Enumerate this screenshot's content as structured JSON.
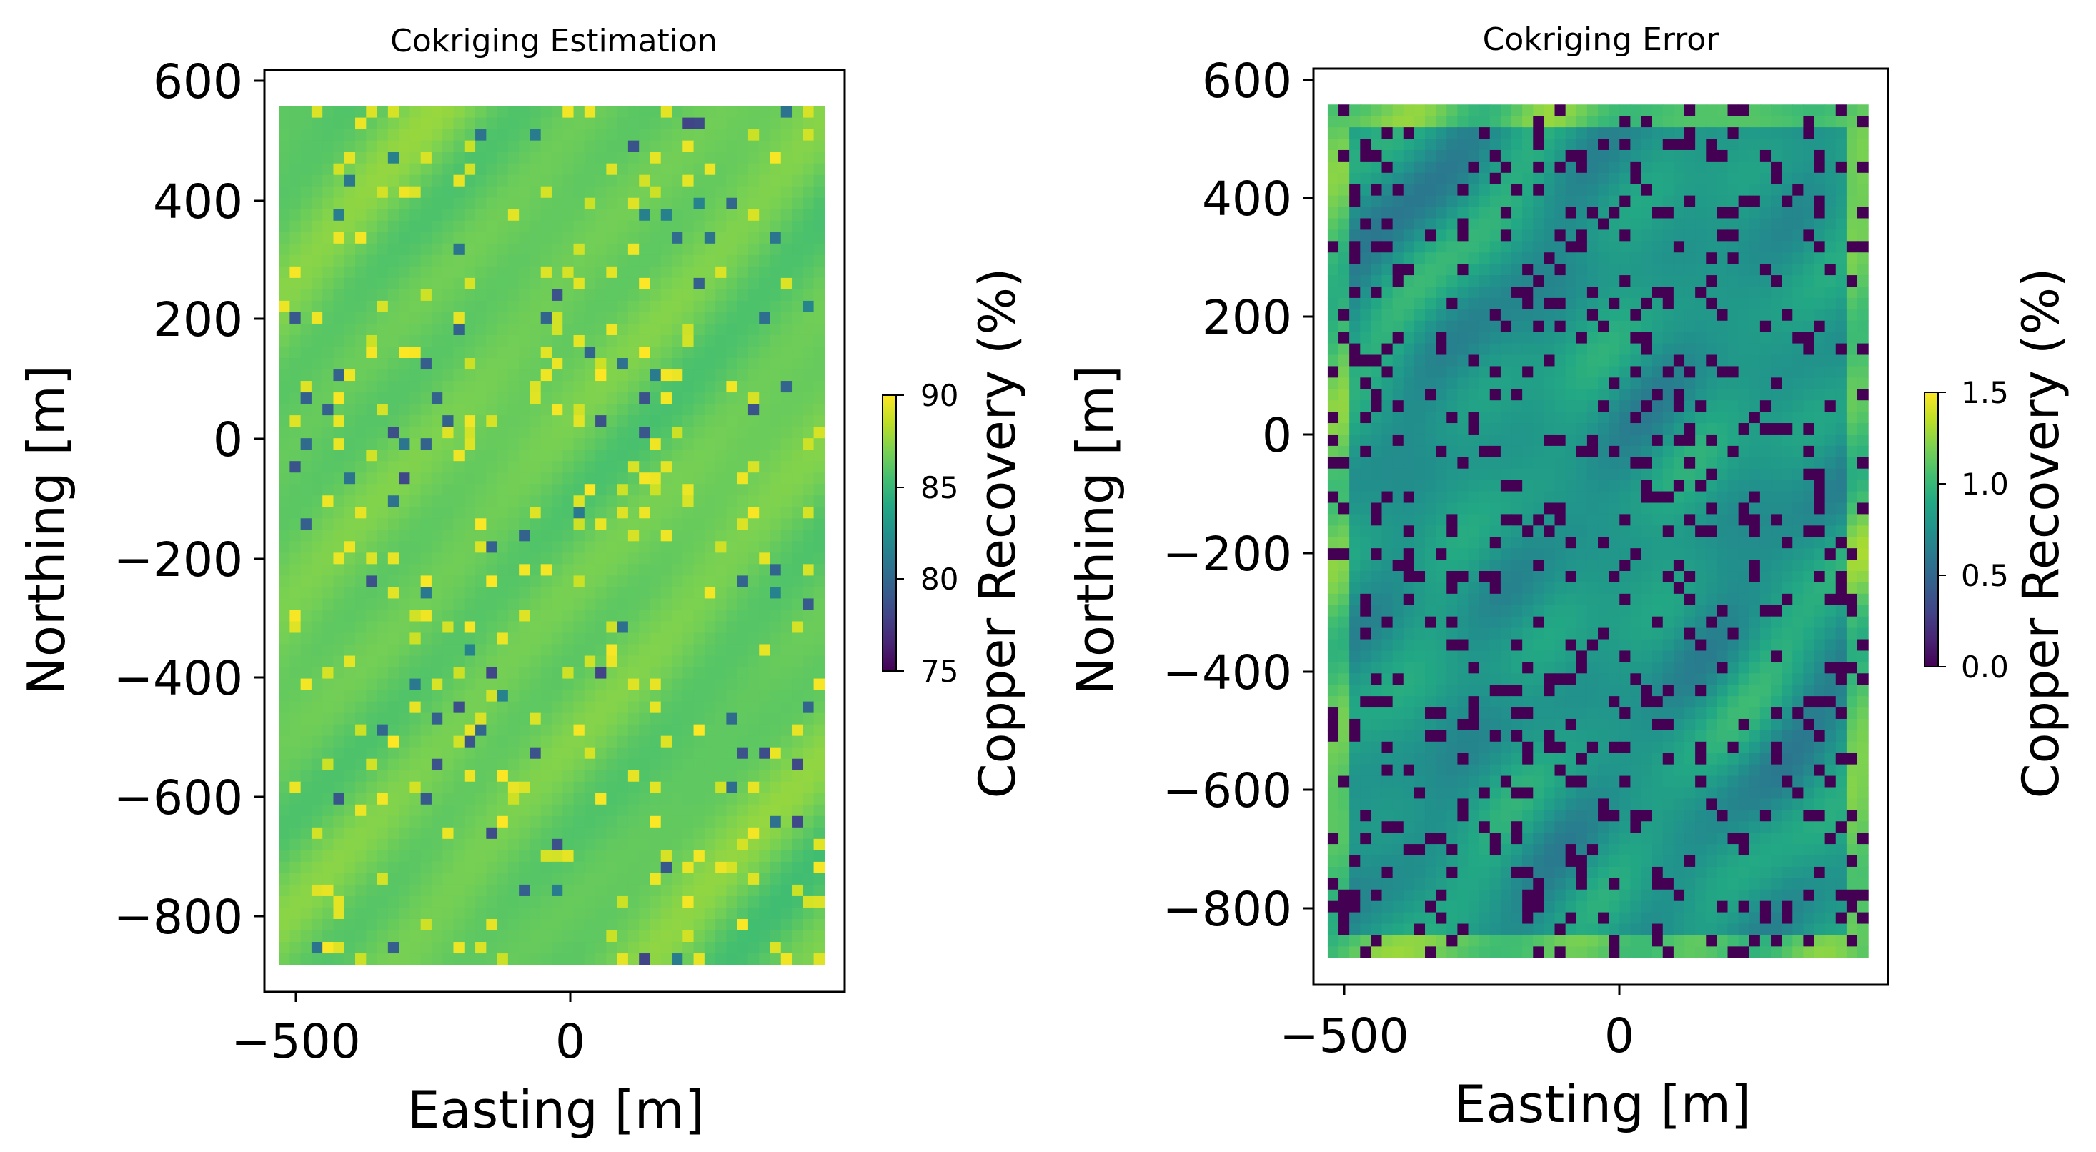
{
  "figure": {
    "panels": [
      "Cokriging Estimation",
      "Cokriging Error"
    ]
  },
  "chart_data": [
    {
      "type": "heatmap",
      "title": "Cokriging Estimation",
      "xlabel": "Easting [m]",
      "ylabel": "Northing [m]",
      "x_ticks": [
        "−500",
        "0"
      ],
      "x_tick_values": [
        -500,
        0
      ],
      "y_ticks": [
        "600",
        "400",
        "200",
        "0",
        "−200",
        "−400",
        "−600",
        "−800"
      ],
      "y_tick_values": [
        600,
        400,
        200,
        0,
        -200,
        -400,
        -600,
        -800
      ],
      "xlim": [
        -530,
        480
      ],
      "ylim": [
        -920,
        610
      ],
      "data_extent": {
        "x": [
          -505,
          440
        ],
        "y": [
          -870,
          550
        ]
      },
      "grid": {
        "cols": 50,
        "rows": 75,
        "cell_size_m": 19
      },
      "field": {
        "base_value": 86.5,
        "min_value": 75,
        "max_value": 90
      },
      "colormap": "viridis",
      "colorbar": {
        "label": "Copper Recovery (%)",
        "range": [
          75,
          90
        ],
        "ticks": [
          "90",
          "85",
          "80",
          "75"
        ],
        "tick_values": [
          90,
          85,
          80,
          75
        ]
      }
    },
    {
      "type": "heatmap",
      "title": "Cokriging Error",
      "xlabel": "Easting [m]",
      "ylabel": "Northing [m]",
      "x_ticks": [
        "−500",
        "0"
      ],
      "x_tick_values": [
        -500,
        0
      ],
      "y_ticks": [
        "600",
        "400",
        "200",
        "0",
        "−200",
        "−400",
        "−600",
        "−800"
      ],
      "y_tick_values": [
        600,
        400,
        200,
        0,
        -200,
        -400,
        -600,
        -800
      ],
      "xlim": [
        -530,
        480
      ],
      "ylim": [
        -920,
        610
      ],
      "data_extent": {
        "x": [
          -505,
          440
        ],
        "y": [
          -870,
          550
        ]
      },
      "grid": {
        "cols": 50,
        "rows": 75,
        "cell_size_m": 19
      },
      "field": {
        "base_value": 0.8,
        "min_value": 0.0,
        "max_value": 1.5
      },
      "colormap": "viridis",
      "colorbar": {
        "label": "Copper Recovery (%)",
        "range": [
          0.0,
          1.5
        ],
        "ticks": [
          "1.5",
          "1.0",
          "0.5",
          "0.0"
        ],
        "tick_values": [
          1.5,
          1.0,
          0.5,
          0.0
        ]
      }
    }
  ]
}
